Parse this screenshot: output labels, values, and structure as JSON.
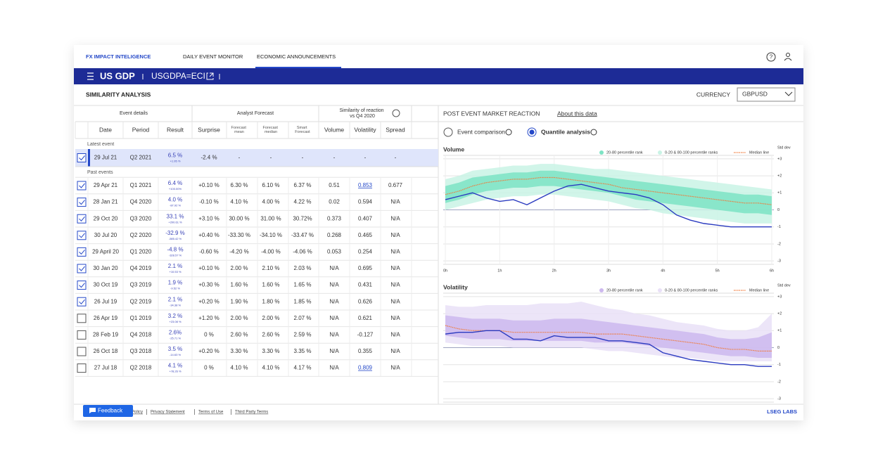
{
  "nav": {
    "brand": "FX IMPACT INTELIGENCE",
    "tabs": [
      "DAILY EVENT MONITOR",
      "ECONOMIC ANNOUNCEMENTS"
    ],
    "active_tab": 1
  },
  "header": {
    "title": "US GDP",
    "code": "USGDPA=ECI"
  },
  "section": {
    "title": "SIMILARITY ANALYSIS",
    "currency_label": "CURRENCY",
    "currency": "GBPUSD"
  },
  "table": {
    "groups": [
      "Event details",
      "Analyst Forecast",
      "Similarity of reaction vs Q4 2020"
    ],
    "columns": [
      "Date",
      "Period",
      "Result",
      "Surprise",
      "Forecast mean",
      "Forecast median",
      "Smart Forecast",
      "Volume",
      "Volatility",
      "Spread"
    ],
    "latest_label": "Latest event",
    "latest": {
      "checked": true,
      "cells": [
        "29 Jul 21",
        "Q2 2021",
        "6.5 %",
        "-2.4 %",
        "-",
        "-",
        "-",
        "-",
        "-",
        "-"
      ],
      "change": "+1.95 %"
    },
    "past_label": "Past events",
    "rows": [
      {
        "checked": true,
        "cells": [
          "29 Apr 21",
          "Q1 2021",
          "6.4 %",
          "+0.10 %",
          "6.30 %",
          "6.10 %",
          "6.37 %",
          "0.51",
          "0.853",
          "0.677"
        ],
        "change": "+100.00%",
        "link": true
      },
      {
        "checked": true,
        "cells": [
          "28 Jan 21",
          "Q4 2020",
          "4.0 %",
          "-0.10 %",
          "4.10 %",
          "4.00 %",
          "4.22 %",
          "0.02",
          "0.594",
          "N/A"
        ],
        "change": "-87.92 %"
      },
      {
        "checked": true,
        "cells": [
          "29 Oct 20",
          "Q3 2020",
          "33.1 %",
          "+3.10 %",
          "30.00 %",
          "31.00 %",
          "30.72%",
          "0.373",
          "0.407",
          "N/A"
        ],
        "change": "+200.61 %"
      },
      {
        "checked": true,
        "cells": [
          "30 Jul 20",
          "Q2 2020",
          "-32.9 %",
          "+0.40 %",
          "-33.30 %",
          "-34.10 %",
          "-33.47 %",
          "0.268",
          "0.465",
          "N/A"
        ],
        "change": "-585.42 %"
      },
      {
        "checked": true,
        "cells": [
          "29 April 20",
          "Q1 2020",
          "-4.8 %",
          "-0.60 %",
          "-4.20 %",
          "-4.00 %",
          "-4.06 %",
          "0.053",
          "0.254",
          "N/A"
        ],
        "change": "-328.57 %"
      },
      {
        "checked": true,
        "cells": [
          "30 Jan 20",
          "Q4 2019",
          "2.1 %",
          "+0.10 %",
          "2.00 %",
          "2.10 %",
          "2.03 %",
          "N/A",
          "0.695",
          "N/A"
        ],
        "change": "+10.53 %"
      },
      {
        "checked": true,
        "cells": [
          "30 Oct 19",
          "Q3 2019",
          "1.9 %",
          "+0.30 %",
          "1.60 %",
          "1.60 %",
          "1.65 %",
          "N/A",
          "0.431",
          "N/A"
        ],
        "change": "-9.52 %"
      },
      {
        "checked": true,
        "cells": [
          "26 Jul 19",
          "Q2 2019",
          "2.1 %",
          "+0.20 %",
          "1.90 %",
          "1.80 %",
          "1.85 %",
          "N/A",
          "0.626",
          "N/A"
        ],
        "change": "-34.38 %"
      },
      {
        "checked": false,
        "cells": [
          "26 Apr 19",
          "Q1 2019",
          "3.2 %",
          "+1.20 %",
          "2.00 %",
          "2.00 %",
          "2.07 %",
          "N/A",
          "0.621",
          "N/A"
        ],
        "change": "+23.08 %"
      },
      {
        "checked": false,
        "cells": [
          "28 Feb 19",
          "Q4 2018",
          "2.6%",
          "0 %",
          "2.60 %",
          "2.60 %",
          "2.59 %",
          "N/A",
          "-0.127",
          "N/A"
        ],
        "change": "-25.71 %"
      },
      {
        "checked": false,
        "cells": [
          "26 Oct 18",
          "Q3 2018",
          "3.5 %",
          "+0.20 %",
          "3.30 %",
          "3.30 %",
          "3.35 %",
          "N/A",
          "0.355",
          "N/A"
        ],
        "change": "-14.63 %"
      },
      {
        "checked": false,
        "cells": [
          "27 Jul 18",
          "Q2 2018",
          "4.1 %",
          "0 %",
          "4.10 %",
          "4.10 %",
          "4.17 %",
          "N/A",
          "0.809",
          "N/A"
        ],
        "change": "+78.26 %",
        "link": true
      }
    ]
  },
  "panel": {
    "title": "POST EVENT MARKET REACTION",
    "about": "About this data",
    "options": [
      "Event comparison",
      "Quantile analysis"
    ],
    "selected": 1
  },
  "chart_data": [
    {
      "type": "line",
      "title": "Volume",
      "y_label": "Std dev",
      "x": [
        0,
        0.25,
        0.5,
        0.75,
        1,
        1.25,
        1.5,
        1.75,
        2,
        2.25,
        2.5,
        2.75,
        3,
        3.25,
        3.5,
        3.75,
        4,
        4.25,
        4.5,
        4.75,
        5,
        5.25,
        5.5,
        5.75,
        6
      ],
      "xlim": [
        0,
        6
      ],
      "ylim": [
        -3.2,
        3.2
      ],
      "xticks": [
        {
          "value": 0,
          "label": "0h"
        },
        {
          "value": 1,
          "label": "1h"
        },
        {
          "value": 2,
          "label": "2h"
        },
        {
          "value": 3,
          "label": "3h"
        },
        {
          "value": 4,
          "label": "4h"
        },
        {
          "value": 5,
          "label": "5h"
        },
        {
          "value": 6,
          "label": "6h"
        }
      ],
      "yticks": [
        {
          "value": 3,
          "label": "+3"
        },
        {
          "value": 2,
          "label": "+2"
        },
        {
          "value": 1,
          "label": "+1"
        },
        0,
        -1,
        -2,
        -3
      ],
      "series": [
        {
          "name": "20-80 percentile rank",
          "color": "#7de3c4",
          "upper": [
            1.4,
            1.6,
            1.9,
            2.0,
            2.1,
            2.2,
            2.2,
            2.3,
            2.3,
            2.2,
            2.1,
            2.0,
            1.9,
            1.8,
            1.7,
            1.6,
            1.5,
            1.4,
            1.3,
            1.2,
            1.1,
            1.0,
            0.9,
            0.9,
            0.8
          ],
          "lower": [
            0.4,
            0.6,
            0.9,
            1.1,
            1.2,
            1.3,
            1.3,
            1.4,
            1.4,
            1.3,
            1.2,
            1.1,
            1.0,
            0.8,
            0.6,
            0.5,
            0.4,
            0.3,
            0.2,
            0.1,
            0.0,
            -0.1,
            -0.2,
            -0.2,
            -0.3
          ]
        },
        {
          "name": "0-20 & 80-100 percentile ranks",
          "color": "#c9f3e5",
          "upper": [
            1.8,
            2.0,
            2.3,
            2.4,
            2.5,
            2.6,
            2.6,
            2.7,
            2.7,
            2.6,
            2.5,
            2.4,
            2.4,
            2.3,
            2.2,
            2.1,
            2.0,
            1.9,
            1.8,
            1.7,
            1.6,
            1.5,
            1.4,
            1.3,
            1.2
          ],
          "lower": [
            0.0,
            0.2,
            0.4,
            0.6,
            0.7,
            0.8,
            0.8,
            0.9,
            0.9,
            0.8,
            0.7,
            0.6,
            0.5,
            0.3,
            0.1,
            0.0,
            -0.2,
            -0.3,
            -0.4,
            -0.5,
            -0.6,
            -0.7,
            -0.8,
            -0.8,
            -0.8
          ]
        },
        {
          "name": "Median line",
          "color": "#f07a3a",
          "values": [
            0.9,
            1.1,
            1.4,
            1.6,
            1.7,
            1.8,
            1.8,
            1.9,
            1.9,
            1.8,
            1.7,
            1.6,
            1.5,
            1.3,
            1.2,
            1.1,
            1.0,
            0.9,
            0.8,
            0.7,
            0.6,
            0.5,
            0.4,
            0.4,
            0.3
          ]
        }
      ],
      "event_line": {
        "color": "#2b3bc0",
        "values": [
          0.6,
          0.8,
          1.0,
          0.7,
          0.5,
          0.6,
          0.3,
          0.7,
          1.1,
          1.4,
          1.5,
          1.3,
          1.1,
          1.0,
          0.9,
          0.7,
          0.3,
          -0.3,
          -0.6,
          -0.8,
          -0.9,
          -1.0,
          -1.0,
          -1.0,
          -1.0
        ]
      }
    },
    {
      "type": "line",
      "title": "Volatility",
      "y_label": "Std dev",
      "x": [
        0,
        0.25,
        0.5,
        0.75,
        1,
        1.25,
        1.5,
        1.75,
        2,
        2.25,
        2.5,
        2.75,
        3,
        3.25,
        3.5,
        3.75,
        4,
        4.25,
        4.5,
        4.75,
        5,
        5.25,
        5.5,
        5.75,
        6
      ],
      "xlim": [
        0,
        6
      ],
      "ylim": [
        -3.2,
        3.2
      ],
      "yticks": [
        {
          "value": 3,
          "label": "+3"
        },
        {
          "value": 2,
          "label": "+2"
        },
        {
          "value": 1,
          "label": "+1"
        },
        0,
        -1,
        -2,
        -3
      ],
      "series": [
        {
          "name": "20-80 percentile rank",
          "color": "#cdb9ee",
          "upper": [
            1.9,
            1.8,
            1.7,
            1.7,
            1.7,
            1.6,
            1.6,
            1.6,
            1.7,
            1.7,
            1.7,
            1.6,
            1.5,
            1.4,
            1.3,
            1.2,
            1.1,
            1.0,
            0.9,
            0.8,
            0.6,
            0.5,
            0.5,
            0.6,
            0.9
          ],
          "lower": [
            0.7,
            0.6,
            0.5,
            0.5,
            0.5,
            0.4,
            0.4,
            0.4,
            0.4,
            0.4,
            0.4,
            0.3,
            0.3,
            0.3,
            0.2,
            0.1,
            0.0,
            -0.1,
            -0.2,
            -0.3,
            -0.4,
            -0.5,
            -0.5,
            -0.6,
            -0.6
          ]
        },
        {
          "name": "0-20 & 80-100 percentile ranks",
          "color": "#e9e0f7",
          "upper": [
            2.5,
            2.4,
            2.4,
            2.5,
            2.5,
            2.5,
            2.5,
            2.6,
            2.6,
            2.6,
            2.7,
            2.5,
            2.3,
            2.2,
            2.0,
            1.9,
            1.7,
            1.5,
            1.4,
            1.3,
            1.1,
            1.0,
            1.0,
            1.2,
            2.0
          ],
          "lower": [
            0.3,
            0.2,
            0.1,
            0.1,
            0.1,
            0.0,
            0.0,
            0.0,
            0.0,
            0.0,
            0.0,
            -0.1,
            -0.2,
            -0.2,
            -0.3,
            -0.4,
            -0.5,
            -0.6,
            -0.6,
            -0.7,
            -0.8,
            -0.8,
            -0.8,
            -0.8,
            -0.8
          ]
        },
        {
          "name": "Median line",
          "color": "#f07a3a",
          "values": [
            1.3,
            1.1,
            1.0,
            1.0,
            1.0,
            0.9,
            0.9,
            0.9,
            0.9,
            0.9,
            0.9,
            0.8,
            0.8,
            0.8,
            0.7,
            0.6,
            0.5,
            0.4,
            0.3,
            0.2,
            0.0,
            -0.1,
            -0.1,
            -0.2,
            -0.2
          ]
        }
      ],
      "event_line": {
        "color": "#2b3bc0",
        "values": [
          0.8,
          0.9,
          0.9,
          1.0,
          1.0,
          0.5,
          0.5,
          0.4,
          0.7,
          0.6,
          0.6,
          0.6,
          0.4,
          0.4,
          0.3,
          0.2,
          -0.3,
          -0.5,
          -0.7,
          -0.8,
          -0.9,
          -1.0,
          -1.0,
          -1.1,
          -1.1
        ]
      }
    }
  ],
  "footer": {
    "feedback": "Feedback",
    "links": [
      "Cookie Policy",
      "Privacy Statement",
      "Terms of Use",
      "Third Party Terms"
    ],
    "brand": "LSEG LABS"
  }
}
